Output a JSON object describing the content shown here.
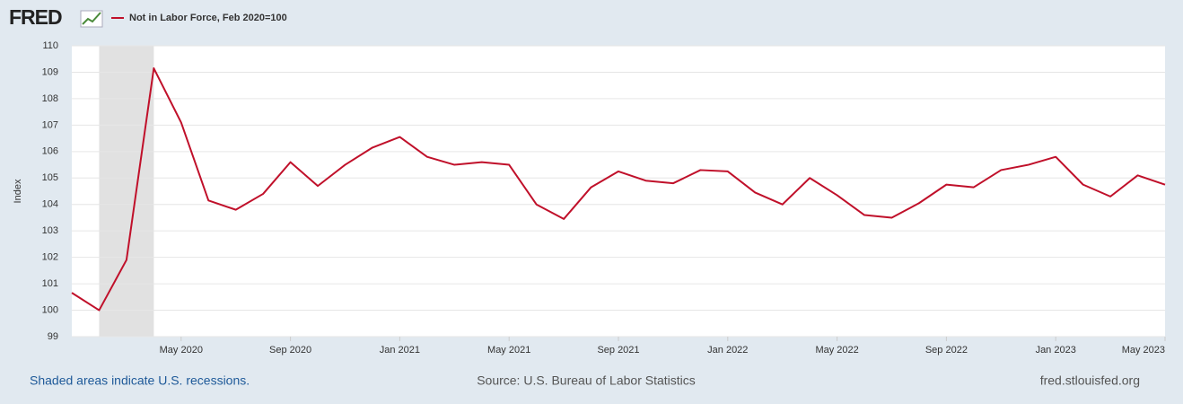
{
  "logo": "FRED",
  "chart_data": {
    "type": "line",
    "y_axis_label": "Index",
    "x": [
      "2020-01",
      "2020-02",
      "2020-03",
      "2020-04",
      "2020-05",
      "2020-06",
      "2020-07",
      "2020-08",
      "2020-09",
      "2020-10",
      "2020-11",
      "2020-12",
      "2021-01",
      "2021-02",
      "2021-03",
      "2021-04",
      "2021-05",
      "2021-06",
      "2021-07",
      "2021-08",
      "2021-09",
      "2021-10",
      "2021-11",
      "2021-12",
      "2022-01",
      "2022-02",
      "2022-03",
      "2022-04",
      "2022-05",
      "2022-06",
      "2022-07",
      "2022-08",
      "2022-09",
      "2022-10",
      "2022-11",
      "2022-12",
      "2023-01",
      "2023-02",
      "2023-03",
      "2023-04",
      "2023-05"
    ],
    "series": [
      {
        "name": "Not in Labor Force, Feb 2020=100",
        "color": "#c0102a",
        "values": [
          100.66,
          100.0,
          101.9,
          109.15,
          107.1,
          104.15,
          103.8,
          104.4,
          105.6,
          104.7,
          105.5,
          106.15,
          106.55,
          105.8,
          105.5,
          105.6,
          105.5,
          104.0,
          103.45,
          104.65,
          105.25,
          104.9,
          104.8,
          105.3,
          105.25,
          104.45,
          104.0,
          105.0,
          104.35,
          103.6,
          103.5,
          104.05,
          104.75,
          104.65,
          105.3,
          105.5,
          105.8,
          104.75,
          104.3,
          105.1,
          104.75
        ]
      }
    ],
    "recessions": [
      {
        "start": "2020-02",
        "end": "2020-04"
      }
    ],
    "recession_color": "#e1e1e1",
    "ylim": [
      99,
      110
    ],
    "yticks": [
      99,
      100,
      101,
      102,
      103,
      104,
      105,
      106,
      107,
      108,
      109,
      110
    ],
    "xticks": [
      {
        "value": "2020-05",
        "label": "May 2020"
      },
      {
        "value": "2020-09",
        "label": "Sep 2020"
      },
      {
        "value": "2021-01",
        "label": "Jan 2021"
      },
      {
        "value": "2021-05",
        "label": "May 2021"
      },
      {
        "value": "2021-09",
        "label": "Sep 2021"
      },
      {
        "value": "2022-01",
        "label": "Jan 2022"
      },
      {
        "value": "2022-05",
        "label": "May 2022"
      },
      {
        "value": "2022-09",
        "label": "Sep 2022"
      },
      {
        "value": "2023-01",
        "label": "Jan 2023"
      },
      {
        "value": "2023-05",
        "label": "May 2023"
      }
    ],
    "grid": true,
    "recession_note": "Shaded areas indicate U.S. recessions.",
    "source": "Source: U.S. Bureau of Labor Statistics",
    "site": "fred.stlouisfed.org"
  }
}
